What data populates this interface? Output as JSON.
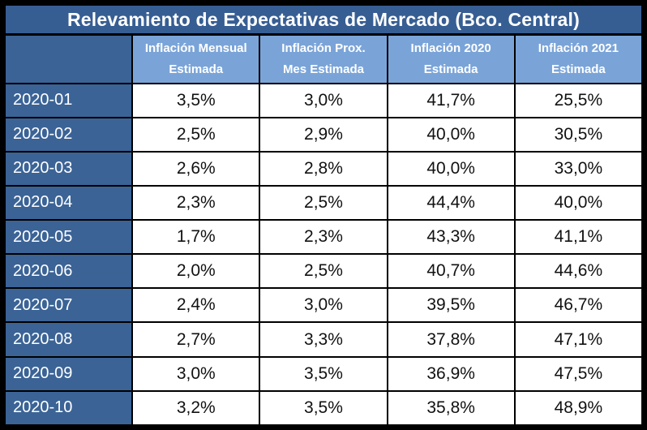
{
  "colors": {
    "frame": "#000000",
    "title_bar_bg": "#375E93",
    "label_cell_bg": "#3B6396",
    "header_cell_bg": "#7AA4D8",
    "header_text": "#FFFFFF",
    "data_cell_bg": "#FFFFFF",
    "data_text": "#111111"
  },
  "chart_data": {
    "type": "table",
    "title": "Relevamiento de Expectativas de Mercado (Bco. Central)",
    "columns": [
      "Inflación Mensual Estimada",
      "Inflación Prox. Mes Estimada",
      "Inflación 2020 Estimada",
      "Inflación 2021 Estimada"
    ],
    "rows": [
      {
        "label": "2020-01",
        "values": [
          "3,5%",
          "3,0%",
          "41,7%",
          "25,5%"
        ]
      },
      {
        "label": "2020-02",
        "values": [
          "2,5%",
          "2,9%",
          "40,0%",
          "30,5%"
        ]
      },
      {
        "label": "2020-03",
        "values": [
          "2,6%",
          "2,8%",
          "40,0%",
          "33,0%"
        ]
      },
      {
        "label": "2020-04",
        "values": [
          "2,3%",
          "2,5%",
          "44,4%",
          "40,0%"
        ]
      },
      {
        "label": "2020-05",
        "values": [
          "1,7%",
          "2,3%",
          "43,3%",
          "41,1%"
        ]
      },
      {
        "label": "2020-06",
        "values": [
          "2,0%",
          "2,5%",
          "40,7%",
          "44,6%"
        ]
      },
      {
        "label": "2020-07",
        "values": [
          "2,4%",
          "3,0%",
          "39,5%",
          "46,7%"
        ]
      },
      {
        "label": "2020-08",
        "values": [
          "2,7%",
          "3,3%",
          "37,8%",
          "47,1%"
        ]
      },
      {
        "label": "2020-09",
        "values": [
          "3,0%",
          "3,5%",
          "36,9%",
          "47,5%"
        ]
      },
      {
        "label": "2020-10",
        "values": [
          "3,2%",
          "3,5%",
          "35,8%",
          "48,9%"
        ]
      }
    ]
  }
}
